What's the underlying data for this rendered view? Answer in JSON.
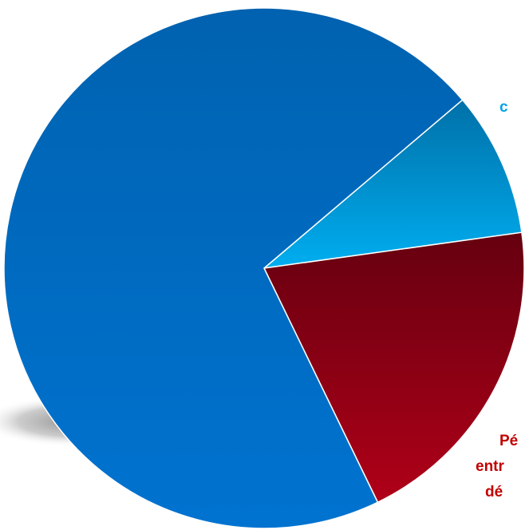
{
  "chart_data": {
    "type": "pie",
    "title": "",
    "slices": [
      {
        "label": "",
        "value": 71,
        "color": "#0067BF"
      },
      {
        "label": "c",
        "value": 9,
        "color": "#00A2E8"
      },
      {
        "label_lines": [
          "Pé",
          "entr",
          "dé"
        ],
        "value": 20,
        "color": "#8A0012"
      }
    ]
  }
}
